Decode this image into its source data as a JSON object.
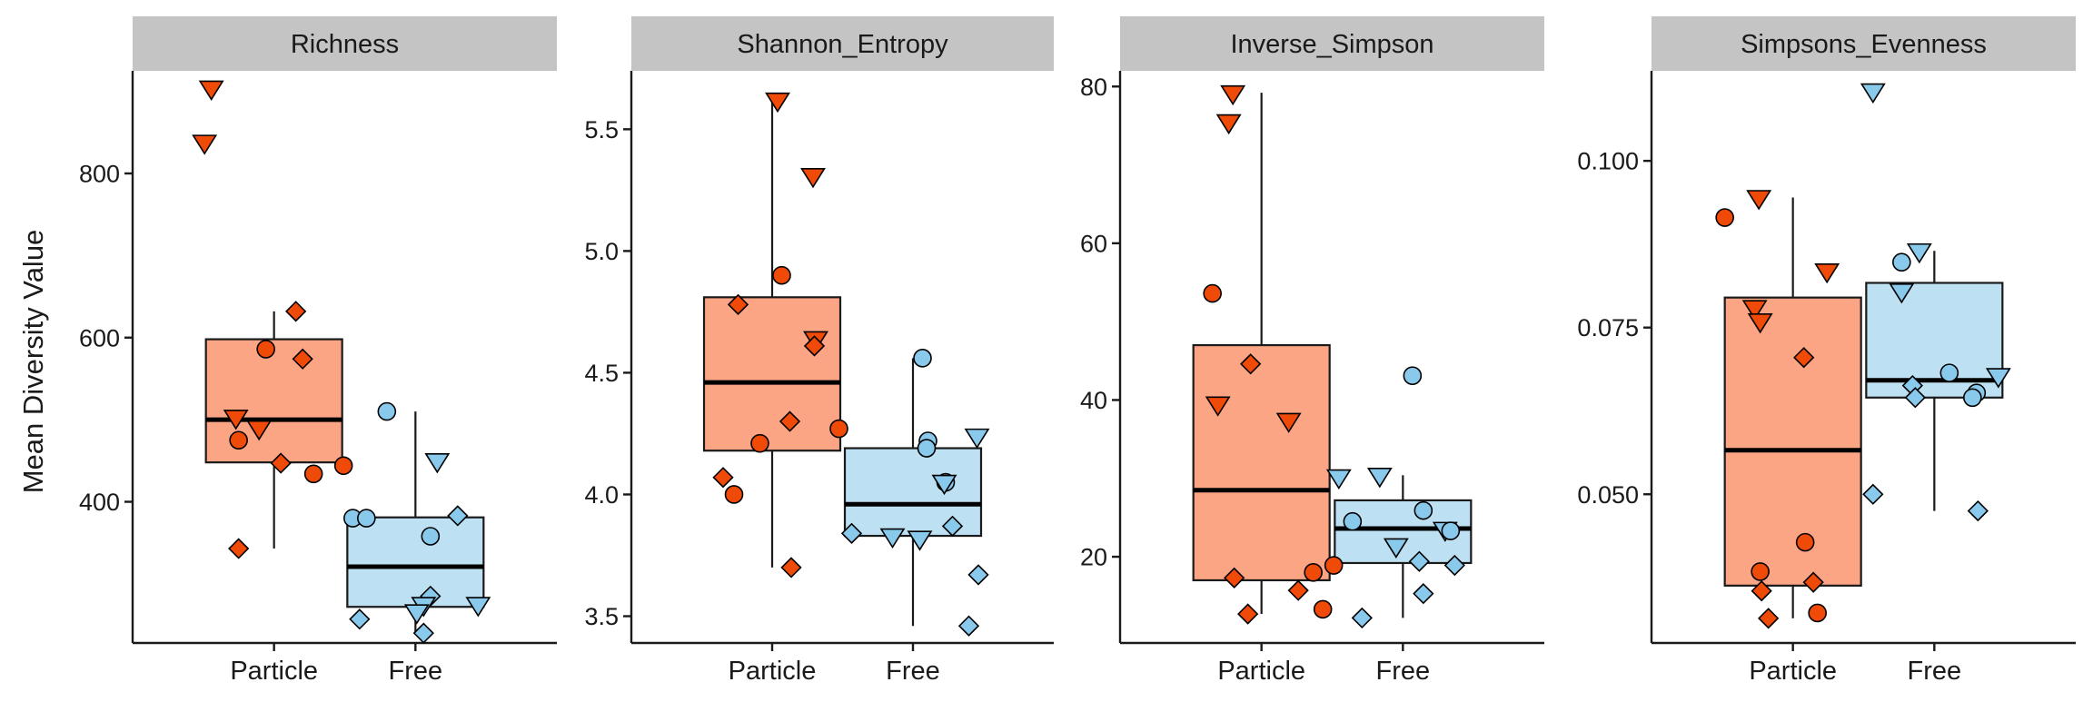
{
  "chart_data": {
    "type": "boxplot",
    "ylabel": "Mean Diversity Value",
    "categories": [
      "Particle",
      "Free"
    ],
    "colors": {
      "Particle": {
        "box": "#fba585",
        "point": "#f04a08"
      },
      "Free": {
        "box": "#bde0f2",
        "point": "#88c9ec"
      }
    },
    "facets": [
      {
        "title": "Richness",
        "ylim": [
          228,
          925
        ],
        "yticks": [
          400,
          600,
          800
        ],
        "ytick_labels": [
          "400",
          "600",
          "800"
        ],
        "boxes": [
          {
            "category": "Particle",
            "q1": 448,
            "median": 500,
            "q3": 598,
            "whisker_low": 343,
            "whisker_high": 632
          },
          {
            "category": "Free",
            "q1": 272,
            "median": 321,
            "q3": 381,
            "whisker_low": 240,
            "whisker_high": 510
          }
        ],
        "points": [
          {
            "category": "Particle",
            "jitter": -0.46,
            "y": 904,
            "shape": "triangle"
          },
          {
            "category": "Particle",
            "jitter": -0.51,
            "y": 838,
            "shape": "triangle"
          },
          {
            "category": "Particle",
            "jitter": 0.16,
            "y": 632,
            "shape": "diamond"
          },
          {
            "category": "Particle",
            "jitter": -0.06,
            "y": 586,
            "shape": "circle"
          },
          {
            "category": "Particle",
            "jitter": 0.21,
            "y": 574,
            "shape": "diamond"
          },
          {
            "category": "Particle",
            "jitter": -0.28,
            "y": 503,
            "shape": "triangle"
          },
          {
            "category": "Particle",
            "jitter": -0.11,
            "y": 490,
            "shape": "triangle"
          },
          {
            "category": "Particle",
            "jitter": -0.26,
            "y": 475,
            "shape": "circle"
          },
          {
            "category": "Particle",
            "jitter": 0.05,
            "y": 447,
            "shape": "diamond"
          },
          {
            "category": "Particle",
            "jitter": 0.51,
            "y": 444,
            "shape": "circle"
          },
          {
            "category": "Particle",
            "jitter": 0.29,
            "y": 434,
            "shape": "circle"
          },
          {
            "category": "Particle",
            "jitter": -0.26,
            "y": 343,
            "shape": "diamond"
          },
          {
            "category": "Free",
            "jitter": -0.21,
            "y": 510,
            "shape": "circle"
          },
          {
            "category": "Free",
            "jitter": 0.16,
            "y": 450,
            "shape": "triangle"
          },
          {
            "category": "Free",
            "jitter": 0.31,
            "y": 383,
            "shape": "diamond"
          },
          {
            "category": "Free",
            "jitter": -0.46,
            "y": 380,
            "shape": "circle"
          },
          {
            "category": "Free",
            "jitter": -0.36,
            "y": 380,
            "shape": "circle"
          },
          {
            "category": "Free",
            "jitter": 0.11,
            "y": 358,
            "shape": "circle"
          },
          {
            "category": "Free",
            "jitter": 0.11,
            "y": 285,
            "shape": "diamond"
          },
          {
            "category": "Free",
            "jitter": 0.06,
            "y": 275,
            "shape": "triangle"
          },
          {
            "category": "Free",
            "jitter": 0.46,
            "y": 275,
            "shape": "triangle"
          },
          {
            "category": "Free",
            "jitter": 0.01,
            "y": 266,
            "shape": "triangle"
          },
          {
            "category": "Free",
            "jitter": -0.41,
            "y": 257,
            "shape": "diamond"
          },
          {
            "category": "Free",
            "jitter": 0.06,
            "y": 240,
            "shape": "diamond"
          }
        ]
      },
      {
        "title": "Shannon_Entropy",
        "ylim": [
          3.39,
          5.74
        ],
        "yticks": [
          3.5,
          4.0,
          4.5,
          5.0,
          5.5
        ],
        "ytick_labels": [
          "3.5",
          "4.0",
          "4.5",
          "5.0",
          "5.5"
        ],
        "boxes": [
          {
            "category": "Particle",
            "q1": 4.18,
            "median": 4.46,
            "q3": 4.81,
            "whisker_low": 3.7,
            "whisker_high": 5.62
          },
          {
            "category": "Free",
            "q1": 3.83,
            "median": 3.96,
            "q3": 4.19,
            "whisker_low": 3.46,
            "whisker_high": 4.56
          }
        ],
        "points": [
          {
            "category": "Particle",
            "jitter": 0.04,
            "y": 5.62,
            "shape": "triangle"
          },
          {
            "category": "Particle",
            "jitter": 0.3,
            "y": 5.31,
            "shape": "triangle"
          },
          {
            "category": "Particle",
            "jitter": 0.07,
            "y": 4.9,
            "shape": "circle"
          },
          {
            "category": "Particle",
            "jitter": -0.25,
            "y": 4.78,
            "shape": "diamond"
          },
          {
            "category": "Particle",
            "jitter": 0.32,
            "y": 4.64,
            "shape": "triangle"
          },
          {
            "category": "Particle",
            "jitter": 0.31,
            "y": 4.61,
            "shape": "diamond"
          },
          {
            "category": "Particle",
            "jitter": 0.13,
            "y": 4.3,
            "shape": "diamond"
          },
          {
            "category": "Particle",
            "jitter": 0.49,
            "y": 4.27,
            "shape": "circle"
          },
          {
            "category": "Particle",
            "jitter": -0.09,
            "y": 4.21,
            "shape": "circle"
          },
          {
            "category": "Particle",
            "jitter": -0.36,
            "y": 4.07,
            "shape": "diamond"
          },
          {
            "category": "Particle",
            "jitter": -0.28,
            "y": 4.0,
            "shape": "circle"
          },
          {
            "category": "Particle",
            "jitter": 0.14,
            "y": 3.7,
            "shape": "diamond"
          },
          {
            "category": "Free",
            "jitter": 0.07,
            "y": 4.56,
            "shape": "circle"
          },
          {
            "category": "Free",
            "jitter": 0.47,
            "y": 4.24,
            "shape": "triangle"
          },
          {
            "category": "Free",
            "jitter": 0.11,
            "y": 4.22,
            "shape": "circle"
          },
          {
            "category": "Free",
            "jitter": 0.1,
            "y": 4.19,
            "shape": "circle"
          },
          {
            "category": "Free",
            "jitter": 0.24,
            "y": 4.05,
            "shape": "circle"
          },
          {
            "category": "Free",
            "jitter": 0.23,
            "y": 4.05,
            "shape": "triangle"
          },
          {
            "category": "Free",
            "jitter": 0.29,
            "y": 3.87,
            "shape": "diamond"
          },
          {
            "category": "Free",
            "jitter": -0.45,
            "y": 3.84,
            "shape": "diamond"
          },
          {
            "category": "Free",
            "jitter": -0.15,
            "y": 3.83,
            "shape": "triangle"
          },
          {
            "category": "Free",
            "jitter": 0.05,
            "y": 3.82,
            "shape": "triangle"
          },
          {
            "category": "Free",
            "jitter": 0.48,
            "y": 3.67,
            "shape": "diamond"
          },
          {
            "category": "Free",
            "jitter": 0.41,
            "y": 3.46,
            "shape": "diamond"
          }
        ]
      },
      {
        "title": "Inverse_Simpson",
        "ylim": [
          9,
          82
        ],
        "yticks": [
          20,
          40,
          60,
          80
        ],
        "ytick_labels": [
          "20",
          "40",
          "60",
          "80"
        ],
        "boxes": [
          {
            "category": "Particle",
            "q1": 17,
            "median": 28.5,
            "q3": 47,
            "whisker_low": 12.7,
            "whisker_high": 79.2
          },
          {
            "category": "Free",
            "q1": 19.2,
            "median": 23.6,
            "q3": 27.2,
            "whisker_low": 12.2,
            "whisker_high": 30.4
          }
        ],
        "points": [
          {
            "category": "Particle",
            "jitter": -0.21,
            "y": 79.2,
            "shape": "triangle"
          },
          {
            "category": "Particle",
            "jitter": -0.24,
            "y": 75.5,
            "shape": "triangle"
          },
          {
            "category": "Particle",
            "jitter": -0.36,
            "y": 53.6,
            "shape": "circle"
          },
          {
            "category": "Particle",
            "jitter": -0.08,
            "y": 44.6,
            "shape": "diamond"
          },
          {
            "category": "Particle",
            "jitter": -0.32,
            "y": 39.5,
            "shape": "triangle"
          },
          {
            "category": "Particle",
            "jitter": 0.2,
            "y": 37.4,
            "shape": "triangle"
          },
          {
            "category": "Particle",
            "jitter": 0.53,
            "y": 18.9,
            "shape": "circle"
          },
          {
            "category": "Particle",
            "jitter": 0.38,
            "y": 18.0,
            "shape": "circle"
          },
          {
            "category": "Particle",
            "jitter": -0.2,
            "y": 17.3,
            "shape": "diamond"
          },
          {
            "category": "Particle",
            "jitter": 0.27,
            "y": 15.7,
            "shape": "diamond"
          },
          {
            "category": "Particle",
            "jitter": 0.45,
            "y": 13.3,
            "shape": "circle"
          },
          {
            "category": "Particle",
            "jitter": -0.1,
            "y": 12.7,
            "shape": "diamond"
          },
          {
            "category": "Free",
            "jitter": 0.07,
            "y": 43.1,
            "shape": "circle"
          },
          {
            "category": "Free",
            "jitter": -0.17,
            "y": 30.4,
            "shape": "triangle"
          },
          {
            "category": "Free",
            "jitter": -0.47,
            "y": 30.2,
            "shape": "triangle"
          },
          {
            "category": "Free",
            "jitter": 0.15,
            "y": 25.9,
            "shape": "circle"
          },
          {
            "category": "Free",
            "jitter": -0.37,
            "y": 24.5,
            "shape": "circle"
          },
          {
            "category": "Free",
            "jitter": 0.31,
            "y": 23.5,
            "shape": "triangle"
          },
          {
            "category": "Free",
            "jitter": 0.35,
            "y": 23.3,
            "shape": "circle"
          },
          {
            "category": "Free",
            "jitter": -0.05,
            "y": 21.4,
            "shape": "triangle"
          },
          {
            "category": "Free",
            "jitter": 0.12,
            "y": 19.4,
            "shape": "diamond"
          },
          {
            "category": "Free",
            "jitter": 0.38,
            "y": 18.9,
            "shape": "diamond"
          },
          {
            "category": "Free",
            "jitter": 0.15,
            "y": 15.3,
            "shape": "diamond"
          },
          {
            "category": "Free",
            "jitter": -0.3,
            "y": 12.2,
            "shape": "diamond"
          }
        ]
      },
      {
        "title": "Simpsons_Evenness",
        "ylim": [
          0.0277,
          0.1135
        ],
        "yticks": [
          0.05,
          0.075,
          0.1
        ],
        "ytick_labels": [
          "0.050",
          "0.075",
          "0.100"
        ],
        "boxes": [
          {
            "category": "Particle",
            "q1": 0.0363,
            "median": 0.0566,
            "q3": 0.0795,
            "whisker_low": 0.0314,
            "whisker_high": 0.0945
          },
          {
            "category": "Free",
            "q1": 0.0645,
            "median": 0.0671,
            "q3": 0.0817,
            "whisker_low": 0.0475,
            "whisker_high": 0.0865
          }
        ],
        "points": [
          {
            "category": "Particle",
            "jitter": -0.25,
            "y": 0.0945,
            "shape": "triangle"
          },
          {
            "category": "Particle",
            "jitter": -0.5,
            "y": 0.0915,
            "shape": "circle"
          },
          {
            "category": "Particle",
            "jitter": 0.25,
            "y": 0.0835,
            "shape": "triangle"
          },
          {
            "category": "Particle",
            "jitter": -0.28,
            "y": 0.078,
            "shape": "triangle"
          },
          {
            "category": "Particle",
            "jitter": -0.24,
            "y": 0.076,
            "shape": "triangle"
          },
          {
            "category": "Particle",
            "jitter": 0.08,
            "y": 0.0705,
            "shape": "diamond"
          },
          {
            "category": "Particle",
            "jitter": 0.09,
            "y": 0.0428,
            "shape": "circle"
          },
          {
            "category": "Particle",
            "jitter": -0.24,
            "y": 0.0384,
            "shape": "circle"
          },
          {
            "category": "Particle",
            "jitter": 0.15,
            "y": 0.0368,
            "shape": "diamond"
          },
          {
            "category": "Particle",
            "jitter": -0.23,
            "y": 0.0355,
            "shape": "diamond"
          },
          {
            "category": "Particle",
            "jitter": 0.18,
            "y": 0.0322,
            "shape": "circle"
          },
          {
            "category": "Particle",
            "jitter": -0.18,
            "y": 0.0314,
            "shape": "diamond"
          },
          {
            "category": "Free",
            "jitter": -0.45,
            "y": 0.1105,
            "shape": "triangle"
          },
          {
            "category": "Free",
            "jitter": -0.11,
            "y": 0.0865,
            "shape": "triangle"
          },
          {
            "category": "Free",
            "jitter": -0.24,
            "y": 0.0848,
            "shape": "circle"
          },
          {
            "category": "Free",
            "jitter": -0.24,
            "y": 0.0805,
            "shape": "triangle"
          },
          {
            "category": "Free",
            "jitter": 0.47,
            "y": 0.0678,
            "shape": "triangle"
          },
          {
            "category": "Free",
            "jitter": 0.11,
            "y": 0.0682,
            "shape": "circle"
          },
          {
            "category": "Free",
            "jitter": -0.16,
            "y": 0.0663,
            "shape": "diamond"
          },
          {
            "category": "Free",
            "jitter": 0.31,
            "y": 0.0652,
            "shape": "circle"
          },
          {
            "category": "Free",
            "jitter": 0.28,
            "y": 0.0645,
            "shape": "circle"
          },
          {
            "category": "Free",
            "jitter": -0.14,
            "y": 0.0645,
            "shape": "diamond"
          },
          {
            "category": "Free",
            "jitter": -0.45,
            "y": 0.05,
            "shape": "diamond"
          },
          {
            "category": "Free",
            "jitter": 0.32,
            "y": 0.0475,
            "shape": "diamond"
          }
        ]
      }
    ]
  }
}
